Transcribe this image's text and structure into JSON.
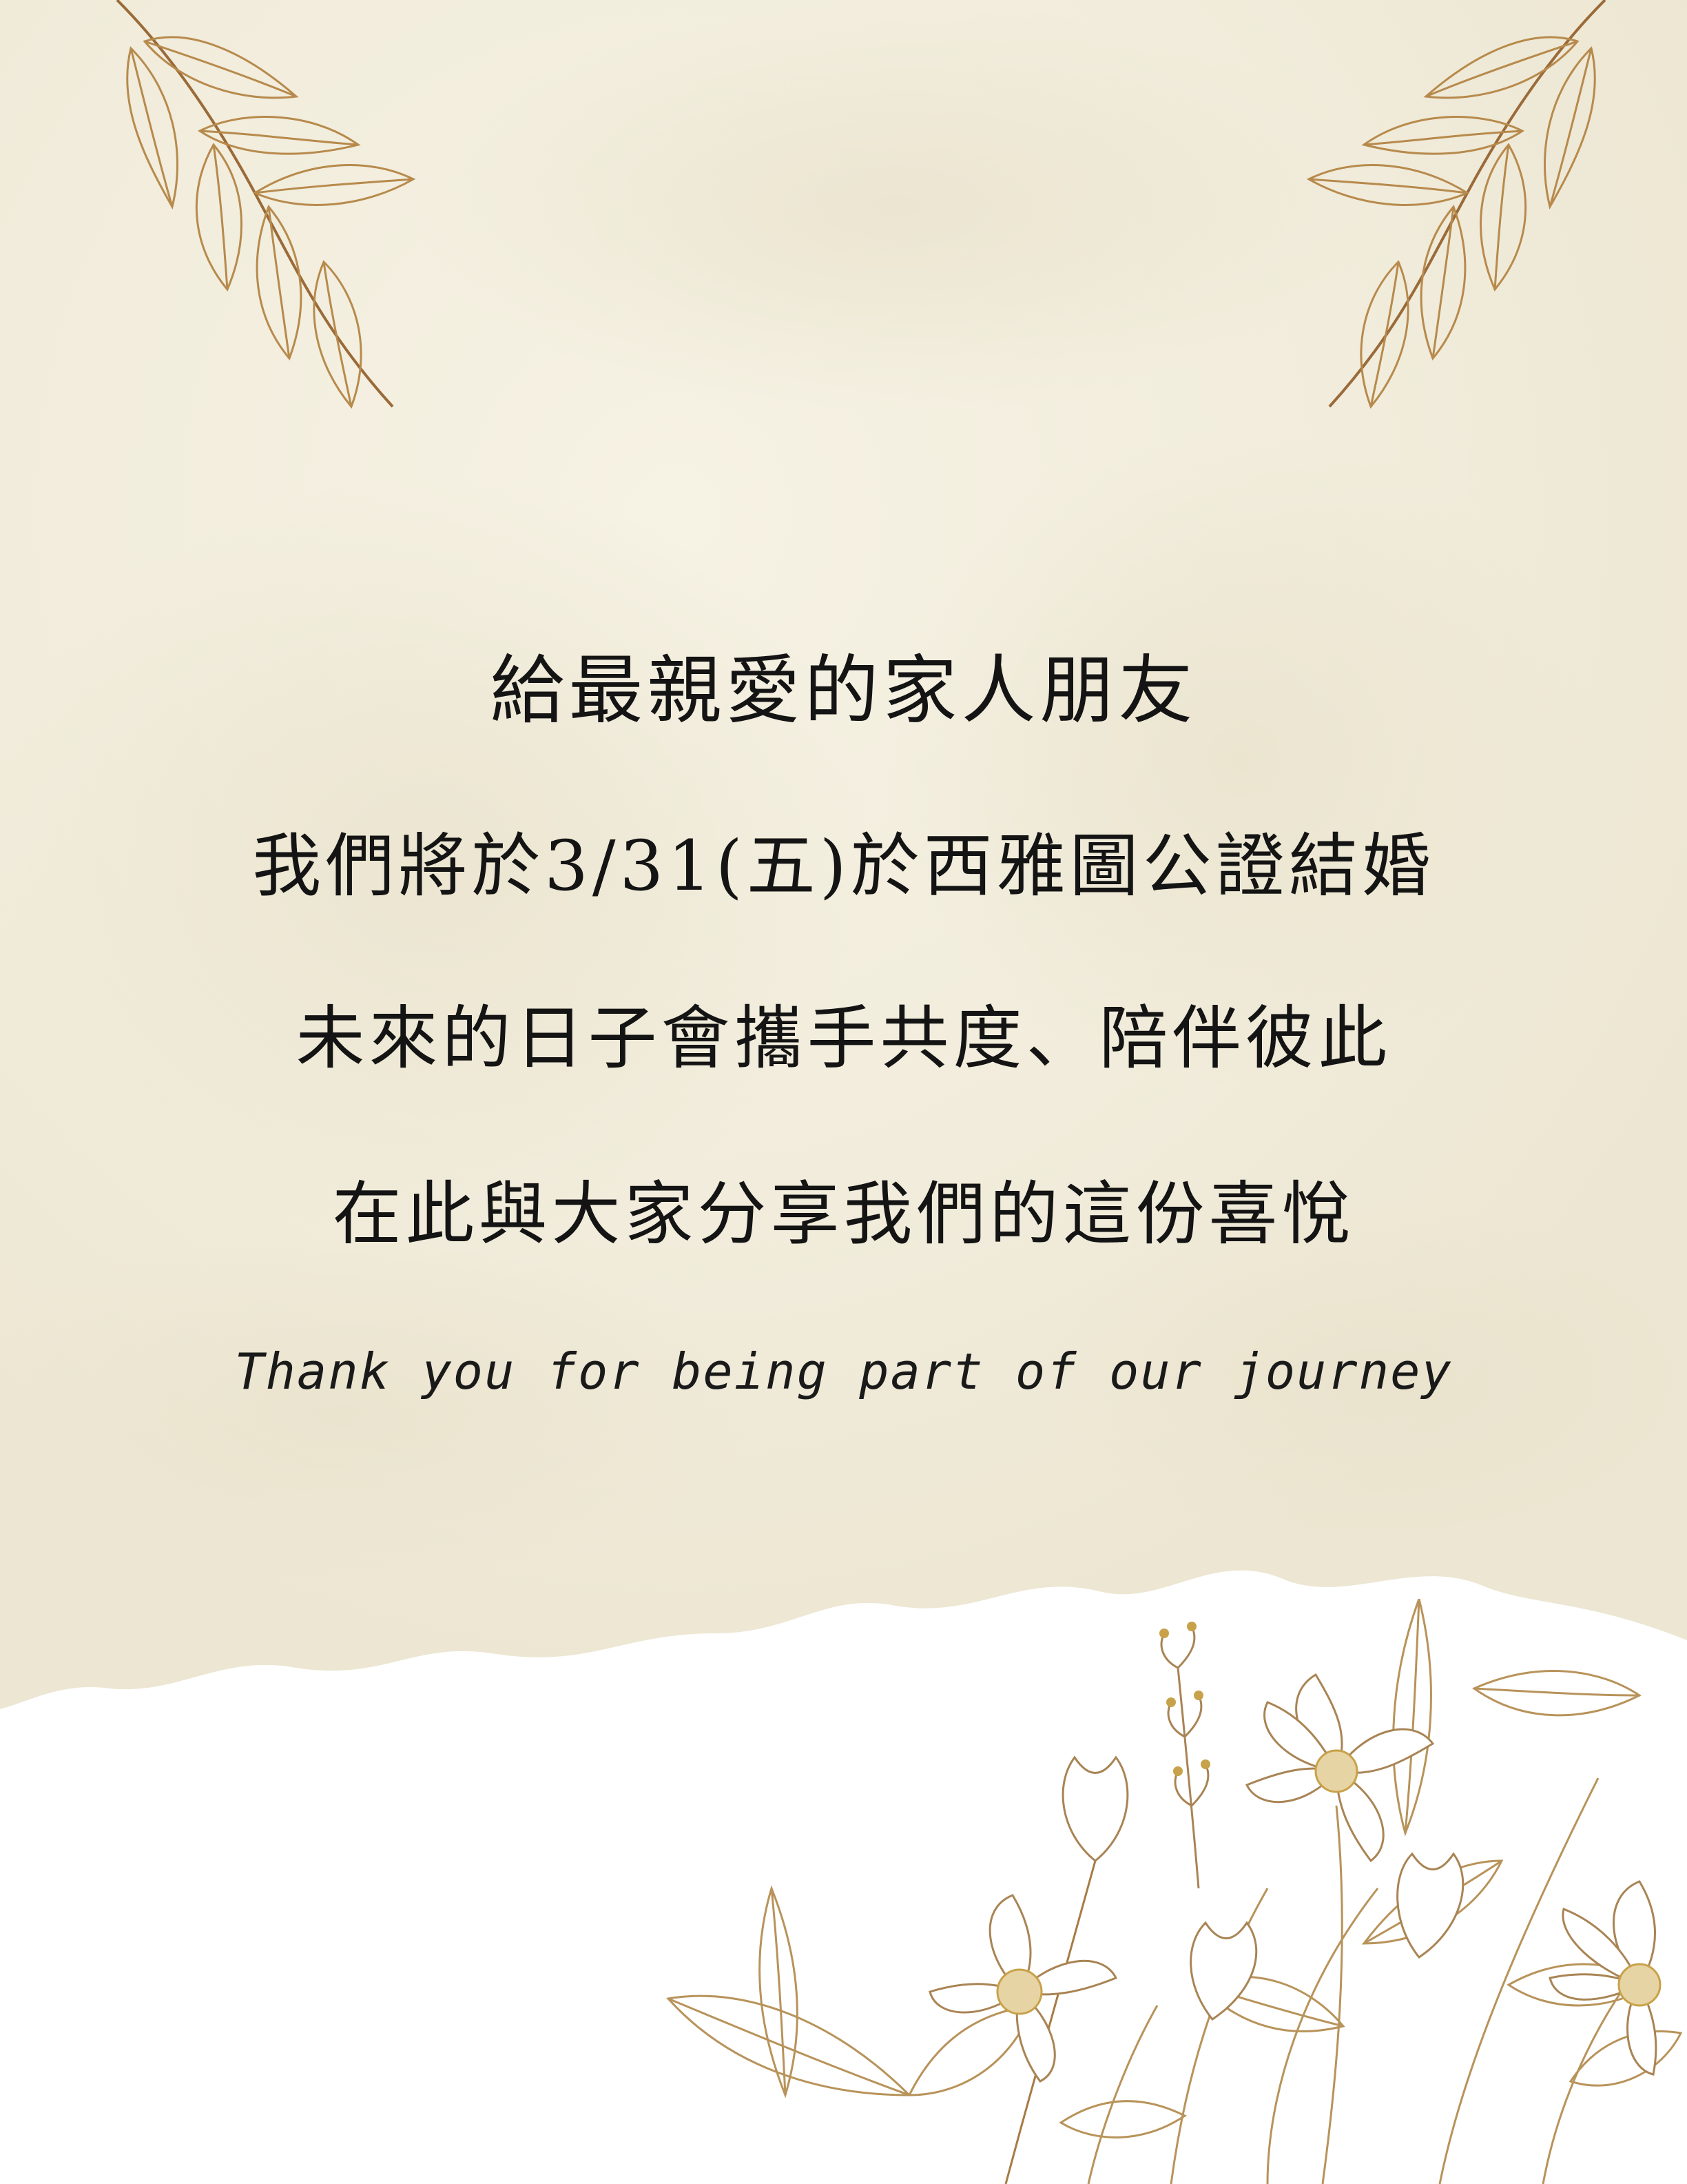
{
  "invitation": {
    "greeting": "給最親愛的家人朋友",
    "announcement": "我們將於3/31(五)於西雅圖公證結婚",
    "promise": "未來的日子會攜手共度、陪伴彼此",
    "sharing": "在此與大家分享我們的這份喜悅",
    "thanks": "Thank you for being part of our journey"
  },
  "colors": {
    "background_wash": "#f2eee0",
    "paper": "#ffffff",
    "gold_line": "#c9a15a",
    "bronze_line": "#8a5a30",
    "ink": "#141414",
    "flower_center": "#c8a24a"
  },
  "decorations": {
    "top_left": "gold-leaf-branch-icon",
    "top_right": "gold-leaf-branch-icon",
    "bottom_right": "gold-line-flower-bouquet-icon"
  }
}
